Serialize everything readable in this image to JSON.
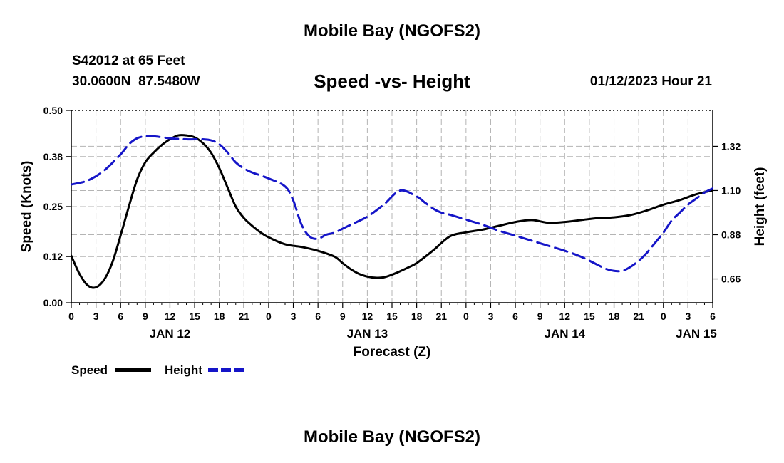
{
  "page": {
    "main_title": "Mobile Bay (NGOFS2)",
    "footer_title": "Mobile Bay (NGOFS2)",
    "station_line": "S42012 at 65 Feet",
    "position_line": "30.0600N  87.5480W",
    "date_line": "01/12/2023 Hour 21"
  },
  "colors": {
    "speed": "#000000",
    "height": "#1515c8",
    "grid": "#b4b4b4"
  },
  "chart_data": {
    "type": "line",
    "title": "Speed -vs- Height",
    "xlabel": "Forecast (Z)",
    "ylabel_left": "Speed (Knots)",
    "ylabel_right": "Height (feet)",
    "x_unit": "hours since Jan 12 00Z",
    "xlim": [
      0,
      78
    ],
    "x_tick_step": 3,
    "x_tick_labels": [
      "0",
      "3",
      "6",
      "9",
      "12",
      "15",
      "18",
      "21",
      "0",
      "3",
      "6",
      "9",
      "12",
      "15",
      "18",
      "21",
      "0",
      "3",
      "6",
      "9",
      "12",
      "15",
      "18",
      "21",
      "0",
      "3",
      "6"
    ],
    "day_labels": [
      {
        "x": 12,
        "label": "JAN 12"
      },
      {
        "x": 36,
        "label": "JAN 13"
      },
      {
        "x": 60,
        "label": "JAN 14"
      },
      {
        "x": 78,
        "label": "JAN 15"
      }
    ],
    "ylim_left": [
      0,
      0.5
    ],
    "y_ticks_left": [
      0.0,
      0.12,
      0.25,
      0.38,
      0.5
    ],
    "y_tick_labels_left": [
      "0.00",
      "0.12",
      "0.25",
      "0.38",
      "0.50"
    ],
    "ylim_right": [
      0.5413,
      1.4988
    ],
    "y_ticks_right": [
      0.66,
      0.88,
      1.1,
      1.32
    ],
    "y_tick_labels_right": [
      "0.66",
      "0.88",
      "1.10",
      "1.32"
    ],
    "legend": [
      {
        "name": "Speed",
        "style": "solid"
      },
      {
        "name": "Height",
        "style": "dashed"
      }
    ],
    "series": [
      {
        "name": "Speed",
        "axis": "left",
        "style": "solid",
        "x": [
          0,
          1,
          2,
          3,
          4,
          5,
          6,
          7,
          8,
          9,
          10,
          11,
          12,
          13,
          14,
          15,
          16,
          17,
          18,
          19,
          20,
          21,
          22,
          23,
          24,
          26,
          28,
          30,
          32,
          33,
          34,
          35,
          36,
          37,
          38,
          39,
          40,
          41,
          42,
          44,
          46,
          48,
          50,
          52,
          54,
          56,
          58,
          60,
          62,
          64,
          66,
          68,
          70,
          72,
          74,
          76,
          78
        ],
        "y": [
          0.122,
          0.075,
          0.045,
          0.04,
          0.06,
          0.105,
          0.175,
          0.25,
          0.32,
          0.365,
          0.39,
          0.41,
          0.425,
          0.435,
          0.435,
          0.43,
          0.415,
          0.39,
          0.35,
          0.3,
          0.25,
          0.22,
          0.2,
          0.183,
          0.17,
          0.152,
          0.145,
          0.135,
          0.12,
          0.103,
          0.087,
          0.075,
          0.068,
          0.065,
          0.066,
          0.073,
          0.082,
          0.092,
          0.103,
          0.136,
          0.172,
          0.183,
          0.19,
          0.2,
          0.21,
          0.215,
          0.208,
          0.21,
          0.215,
          0.22,
          0.222,
          0.228,
          0.24,
          0.255,
          0.267,
          0.282,
          0.292
        ]
      },
      {
        "name": "Height",
        "axis": "right",
        "style": "dashed",
        "x": [
          0,
          2,
          4,
          6,
          7,
          8,
          9,
          10,
          12,
          14,
          16,
          17,
          18,
          19,
          20,
          21,
          22,
          24,
          26,
          27,
          28,
          29,
          30,
          31,
          32,
          33,
          34,
          36,
          38,
          40,
          42,
          43,
          44,
          45,
          46,
          48,
          50,
          52,
          54,
          56,
          58,
          60,
          62,
          64,
          65,
          66,
          67,
          68,
          69,
          70,
          71,
          72,
          73,
          74,
          75,
          76,
          77,
          78
        ],
        "y": [
          1.13,
          1.15,
          1.2,
          1.28,
          1.33,
          1.36,
          1.37,
          1.37,
          1.36,
          1.355,
          1.355,
          1.35,
          1.33,
          1.29,
          1.24,
          1.21,
          1.19,
          1.16,
          1.12,
          1.05,
          0.93,
          0.87,
          0.86,
          0.88,
          0.89,
          0.91,
          0.93,
          0.97,
          1.03,
          1.1,
          1.07,
          1.04,
          1.01,
          0.99,
          0.98,
          0.955,
          0.93,
          0.9,
          0.875,
          0.85,
          0.825,
          0.8,
          0.77,
          0.73,
          0.71,
          0.7,
          0.7,
          0.72,
          0.75,
          0.79,
          0.84,
          0.89,
          0.95,
          0.99,
          1.03,
          1.06,
          1.09,
          1.11
        ]
      }
    ]
  }
}
